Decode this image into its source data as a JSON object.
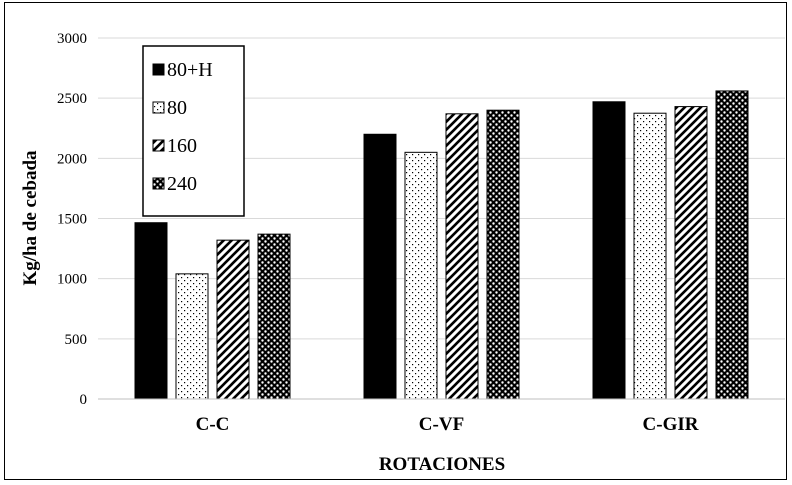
{
  "chart_data": {
    "type": "bar",
    "title": "",
    "xlabel": "ROTACIONES",
    "ylabel": "Kg/ha de cebada",
    "ylim": [
      0,
      3000
    ],
    "yticks": [
      0,
      500,
      1000,
      1500,
      2000,
      2500,
      3000
    ],
    "grid": true,
    "legend_position": "top-left",
    "categories": [
      "C-C",
      "C-VF",
      "C-GIR"
    ],
    "series": [
      {
        "name": "80+H",
        "values": [
          1465,
          2200,
          2470
        ],
        "pattern": "solid"
      },
      {
        "name": "80",
        "values": [
          1040,
          2050,
          2375
        ],
        "pattern": "dots"
      },
      {
        "name": "160",
        "values": [
          1320,
          2370,
          2430
        ],
        "pattern": "diagonal"
      },
      {
        "name": "240",
        "values": [
          1370,
          2400,
          2560
        ],
        "pattern": "checker"
      }
    ]
  }
}
